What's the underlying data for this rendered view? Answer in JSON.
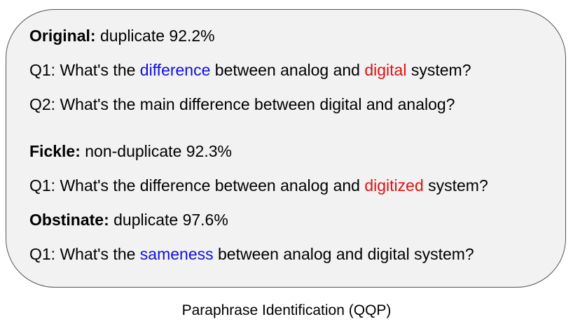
{
  "colors": {
    "panel_background": "#f2f2f2",
    "panel_border": "#555555",
    "highlight_blue": "#1010e0",
    "highlight_red": "#e01010"
  },
  "original": {
    "heading": "Original:",
    "result": " duplicate 92.2%",
    "q1": {
      "prefix": "Q1: What's the ",
      "word1": "difference",
      "middle": " between analog and ",
      "word2": "digital",
      "suffix": " system?"
    },
    "q2": "Q2: What's the main difference between digital and analog?"
  },
  "fickle": {
    "heading": "Fickle:",
    "result": " non-duplicate 92.3%",
    "q1": {
      "prefix": "Q1: What's the difference between analog and ",
      "word": "digitized",
      "suffix": " system?"
    }
  },
  "obstinate": {
    "heading": "Obstinate:",
    "result": " duplicate 97.6%",
    "q1": {
      "prefix": "Q1: What's the ",
      "word": "sameness",
      "suffix": " between analog and digital system?"
    }
  },
  "caption": "Paraphrase Identification (QQP)"
}
